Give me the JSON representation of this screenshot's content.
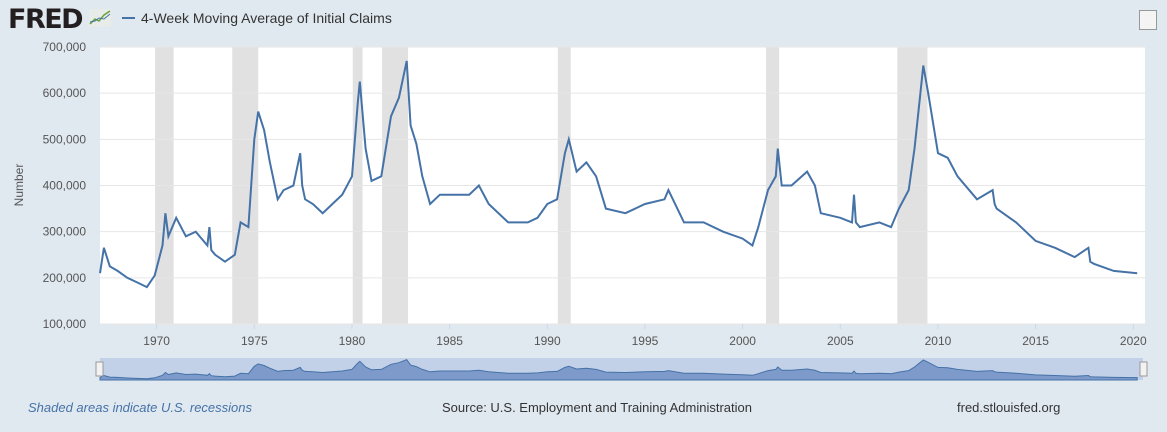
{
  "header": {
    "logo": "FRED",
    "logo_icon": "chart-line-icon",
    "series_title": "4-Week Moving Average of Initial Claims"
  },
  "footer": {
    "recessions": "Shaded areas indicate U.S. recessions",
    "source": "Source: U.S. Employment and Training Administration",
    "site": "fred.stlouisfed.org"
  },
  "colors": {
    "line": "#4572a7",
    "recession": "#e1e1e1",
    "background": "#e1e9f0"
  },
  "chart_data": {
    "type": "line",
    "title": "4-Week Moving Average of Initial Claims",
    "ylabel": "Number",
    "xlabel": "",
    "xlim": [
      1967.1,
      2020.6
    ],
    "ylim": [
      100000,
      700000
    ],
    "grid": true,
    "legend": "top-left",
    "yticks": [
      "100,000",
      "200,000",
      "300,000",
      "400,000",
      "500,000",
      "600,000",
      "700,000"
    ],
    "xticks": [
      "1970",
      "1975",
      "1980",
      "1985",
      "1990",
      "1995",
      "2000",
      "2005",
      "2010",
      "2015",
      "2020"
    ],
    "recessions": [
      [
        1969.92,
        1970.87
      ],
      [
        1973.87,
        1975.2
      ],
      [
        1980.04,
        1980.54
      ],
      [
        1981.54,
        1982.87
      ],
      [
        1990.54,
        1991.2
      ],
      [
        2001.2,
        2001.87
      ],
      [
        2007.92,
        2009.46
      ]
    ],
    "series": [
      {
        "x": [
          1967.1,
          1967.3,
          1967.6,
          1968,
          1968.5,
          1969,
          1969.5,
          1969.9,
          1970.3,
          1970.45,
          1970.6,
          1971,
          1971.5,
          1972,
          1972.6,
          1972.7,
          1972.8,
          1973,
          1973.5,
          1974,
          1974.3,
          1974.7,
          1975,
          1975.2,
          1975.5,
          1975.8,
          1976.2,
          1976.5,
          1977,
          1977.35,
          1977.45,
          1977.6,
          1978,
          1978.5,
          1979,
          1979.5,
          1980,
          1980.3,
          1980.4,
          1980.7,
          1981,
          1981.5,
          1982,
          1982.4,
          1982.8,
          1983,
          1983.3,
          1983.6,
          1984,
          1984.5,
          1985,
          1986,
          1986.5,
          1987,
          1988,
          1989,
          1989.5,
          1990,
          1990.5,
          1990.9,
          1991.1,
          1991.5,
          1992,
          1992.5,
          1993,
          1994,
          1995,
          1996,
          1996.2,
          1997,
          1998,
          1999,
          2000,
          2000.5,
          2000.8,
          2001.3,
          2001.7,
          2001.8,
          2002,
          2002.5,
          2003.3,
          2003.7,
          2004,
          2005,
          2005.6,
          2005.7,
          2005.8,
          2006,
          2007,
          2007.6,
          2008,
          2008.5,
          2008.8,
          2009.1,
          2009.25,
          2009.5,
          2010,
          2010.5,
          2011,
          2012,
          2012.8,
          2012.9,
          2013,
          2014,
          2015,
          2016,
          2017,
          2017.7,
          2017.8,
          2018,
          2019,
          2020.2
        ],
        "y": [
          210000,
          265000,
          225000,
          215000,
          200000,
          190000,
          180000,
          205000,
          270000,
          340000,
          290000,
          330000,
          290000,
          300000,
          270000,
          310000,
          260000,
          250000,
          235000,
          250000,
          320000,
          310000,
          500000,
          560000,
          520000,
          450000,
          370000,
          390000,
          400000,
          470000,
          400000,
          370000,
          360000,
          340000,
          360000,
          380000,
          420000,
          580000,
          625000,
          480000,
          410000,
          420000,
          550000,
          590000,
          670000,
          530000,
          490000,
          420000,
          360000,
          380000,
          380000,
          380000,
          400000,
          360000,
          320000,
          320000,
          330000,
          360000,
          370000,
          470000,
          500000,
          430000,
          450000,
          420000,
          350000,
          340000,
          360000,
          370000,
          390000,
          320000,
          320000,
          300000,
          285000,
          270000,
          310000,
          390000,
          420000,
          480000,
          400000,
          400000,
          430000,
          400000,
          340000,
          330000,
          320000,
          380000,
          320000,
          310000,
          320000,
          310000,
          350000,
          390000,
          480000,
          600000,
          660000,
          600000,
          470000,
          460000,
          420000,
          370000,
          390000,
          360000,
          350000,
          320000,
          280000,
          265000,
          245000,
          265000,
          235000,
          230000,
          215000,
          210000
        ]
      }
    ]
  }
}
